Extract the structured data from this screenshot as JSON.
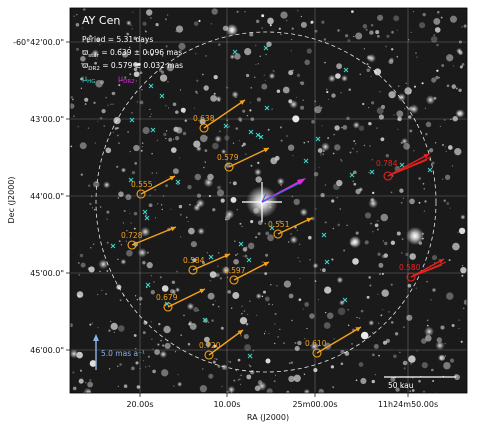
{
  "target": {
    "name": "AY Cen"
  },
  "annotations": {
    "period": "Period =   5.31 days",
    "plx_star": "ϖstar = 0.639 ± 0.096 mas",
    "plx_dr2": "ϖDR2 = 0.579 ± 0.032 mas",
    "mu_hg": "μHG",
    "mu_dr2": "μDR2"
  },
  "axes": {
    "x_label": "RA (J2000)",
    "y_label": "Dec (J2000)",
    "x_ticks": [
      "20.00s",
      "10.00s",
      "25m00.00s",
      "11h24m50.00s"
    ],
    "y_ticks": [
      "-60°42'00.0\"",
      "43'00.0\"",
      "44'00.0\"",
      "45'00.0\"",
      "46'00.0\""
    ]
  },
  "scale": {
    "proper_motion_label": "5.0 mas a⁻¹",
    "length_label": "50 kau"
  },
  "neighbors": [
    {
      "plx": "0.638",
      "color": "orange"
    },
    {
      "plx": "0.579",
      "color": "orange"
    },
    {
      "plx": "0.555",
      "color": "orange"
    },
    {
      "plx": "0.728",
      "color": "orange"
    },
    {
      "plx": "0.551",
      "color": "orange"
    },
    {
      "plx": "0.584",
      "color": "orange"
    },
    {
      "plx": "0.597",
      "color": "orange"
    },
    {
      "plx": "0.679",
      "color": "orange"
    },
    {
      "plx": "0.720",
      "color": "orange"
    },
    {
      "plx": "0.610",
      "color": "orange"
    },
    {
      "plx": "0.784",
      "color": "red"
    },
    {
      "plx": "0.580",
      "color": "red"
    }
  ],
  "colors": {
    "orange": "#f5a21c",
    "red": "#e8231f",
    "magenta": "#e12be0",
    "cyan": "#3ad6c8",
    "scalebar": "#8ab4e8"
  }
}
